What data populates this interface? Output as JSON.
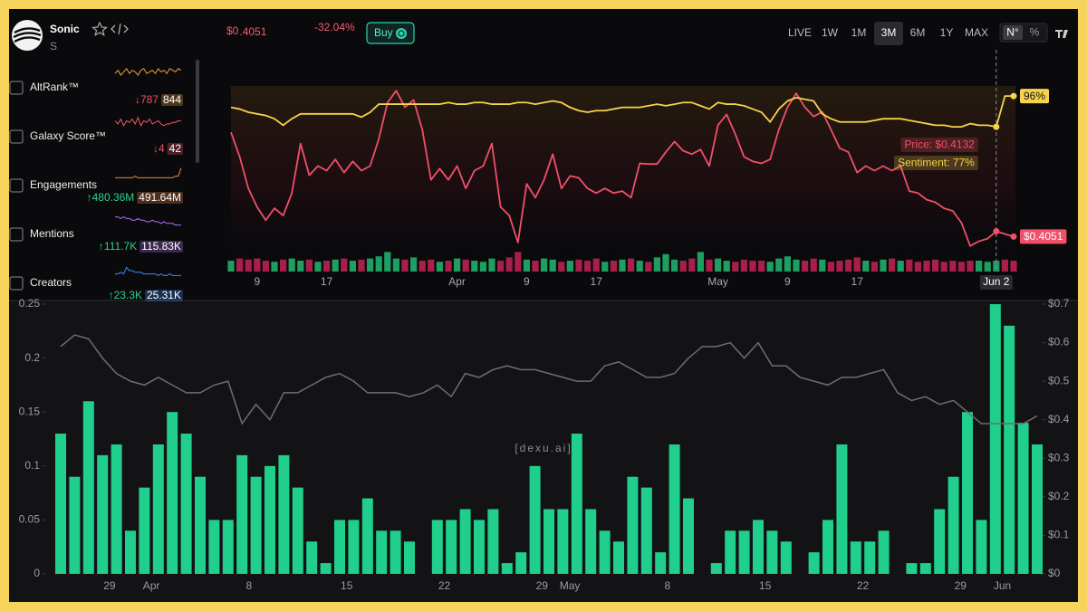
{
  "header": {
    "name": "Sonic",
    "symbol": "S",
    "price_whole": "$0",
    "price_fraction": ".4051",
    "change": "-32.04%",
    "buy": "Buy",
    "ranges": [
      "LIVE",
      "1W",
      "1M",
      "3M",
      "6M",
      "1Y",
      "MAX"
    ],
    "selected_range": "3M",
    "units": [
      "N°",
      "%"
    ],
    "selected_unit": "N°"
  },
  "metrics": [
    {
      "name": "AltRank™",
      "change": "↓787",
      "value": "844",
      "color": "#f0a53a",
      "change_color": "#f0506a",
      "spark": [
        6,
        8,
        5,
        7,
        9,
        6,
        8,
        7,
        5,
        8,
        9,
        6,
        7,
        8,
        6,
        9,
        7,
        8,
        6,
        9,
        8,
        7,
        9,
        8
      ],
      "spark_ylim": [
        0,
        10
      ]
    },
    {
      "name": "Galaxy Score™",
      "change": "↓4",
      "value": "42",
      "color": "#f0566a",
      "change_color": "#f0506a",
      "spark": [
        7,
        5,
        8,
        4,
        7,
        6,
        8,
        5,
        9,
        4,
        7,
        6,
        8,
        5,
        6,
        7,
        5,
        4,
        5,
        5,
        6,
        6,
        7,
        7
      ],
      "spark_ylim": [
        0,
        10
      ]
    },
    {
      "name": "Engagements",
      "change": "↑480.36M",
      "value": "491.64M",
      "color": "#e8884a",
      "change_color": "#2fd08a",
      "spark": [
        2,
        2,
        2,
        2,
        2,
        2,
        2,
        3,
        2,
        2,
        2,
        2,
        2,
        2,
        2,
        2,
        2,
        2,
        2,
        2,
        2,
        3,
        3,
        8
      ],
      "spark_ylim": [
        0,
        10
      ]
    },
    {
      "name": "Mentions",
      "change": "↑111.7K",
      "value": "115.83K",
      "color": "#b36cf0",
      "change_color": "#2fd08a",
      "spark": [
        8,
        8,
        7,
        8,
        7,
        7,
        6,
        6,
        7,
        6,
        6,
        5,
        5,
        6,
        5,
        5,
        4,
        5,
        4,
        4,
        4,
        3,
        3,
        3
      ],
      "spark_ylim": [
        0,
        10
      ]
    },
    {
      "name": "Creators",
      "change": "↑23.3K",
      "value": "25.31K",
      "color": "#3c8cf0",
      "change_color": "#2fd08a",
      "spark": [
        3,
        3,
        4,
        3,
        7,
        5,
        5,
        4,
        4,
        4,
        3,
        3,
        3,
        3,
        3,
        2,
        3,
        2,
        2,
        3,
        2,
        2,
        2,
        2
      ],
      "spark_ylim": [
        0,
        10
      ]
    }
  ],
  "chart_data": [
    {
      "type": "line",
      "categories": [
        null,
        null,
        null,
        "9",
        null,
        null,
        null,
        null,
        null,
        null,
        null,
        "17",
        null,
        null,
        null,
        null,
        null,
        null,
        null,
        null,
        null,
        null,
        null,
        null,
        null,
        null,
        "Apr",
        null,
        null,
        null,
        null,
        null,
        null,
        null,
        "9",
        null,
        null,
        null,
        null,
        null,
        null,
        null,
        "17",
        null,
        null,
        null,
        null,
        null,
        null,
        null,
        null,
        null,
        null,
        null,
        null,
        null,
        "May",
        null,
        null,
        null,
        null,
        null,
        null,
        null,
        "9",
        null,
        null,
        null,
        null,
        null,
        null,
        null,
        "17",
        null,
        null,
        null,
        null,
        null,
        null,
        null,
        null,
        null,
        null,
        null,
        null,
        null,
        null,
        null,
        "Jun 2",
        null,
        null
      ],
      "series": [
        {
          "color": "#f0506a",
          "values": [
            0.563,
            0.526,
            0.478,
            0.45,
            0.43,
            0.448,
            0.437,
            0.471,
            0.546,
            0.498,
            0.512,
            0.505,
            0.522,
            0.502,
            0.519,
            0.505,
            0.512,
            0.553,
            0.608,
            0.626,
            0.601,
            0.612,
            0.567,
            0.491,
            0.508,
            0.491,
            0.512,
            0.478,
            0.505,
            0.512,
            0.546,
            0.45,
            0.437,
            0.396,
            0.485,
            0.464,
            0.491,
            0.53,
            0.478,
            0.497,
            0.494,
            0.478,
            0.471,
            0.478,
            0.471,
            0.474,
            0.464,
            0.516,
            0.515,
            0.515,
            0.533,
            0.549,
            0.535,
            0.53,
            0.537,
            0.512,
            0.574,
            0.59,
            0.56,
            0.526,
            0.519,
            0.516,
            0.522,
            0.567,
            0.601,
            0.622,
            0.601,
            0.587,
            0.594,
            0.567,
            0.539,
            0.533,
            0.502,
            0.512,
            0.505,
            0.512,
            0.505,
            0.512,
            0.474,
            0.471,
            0.461,
            0.457,
            0.448,
            0.444,
            0.426,
            0.391,
            0.398,
            0.402,
            0.4132,
            0.409,
            0.4051
          ],
          "value_labels": [
            null,
            null,
            null,
            null,
            null,
            null,
            null,
            null,
            null,
            null,
            null,
            null,
            null,
            null,
            null,
            null,
            null,
            null,
            null,
            null,
            null,
            null,
            null,
            null,
            null,
            null,
            null,
            null,
            null,
            null,
            null,
            null,
            null,
            null,
            null,
            null,
            null,
            null,
            null,
            null,
            null,
            null,
            null,
            null,
            null,
            null,
            null,
            null,
            null,
            null,
            null,
            null,
            null,
            null,
            null,
            null,
            null,
            null,
            null,
            null,
            null,
            null,
            null,
            null,
            null,
            null,
            null,
            null,
            null,
            null,
            null,
            null,
            null,
            null,
            null,
            null,
            null,
            null,
            null,
            null,
            null,
            null,
            null,
            null,
            null,
            null,
            null,
            null,
            "Price: $0.4132",
            null,
            "$0.4051"
          ]
        },
        {
          "color": "#f5d34a",
          "axis": "y2",
          "values": [
            89,
            88,
            86,
            85,
            84,
            82,
            78,
            82,
            85,
            85,
            85,
            85,
            85,
            85,
            85,
            83,
            86,
            91,
            91,
            91,
            91,
            91,
            91,
            91,
            91,
            92,
            91,
            91,
            92,
            92,
            91,
            91,
            91,
            92,
            92,
            91,
            92,
            93,
            92,
            89,
            87,
            86,
            87,
            87,
            88,
            89,
            89,
            89,
            90,
            91,
            90,
            91,
            92,
            92,
            90,
            88,
            92,
            91,
            91,
            90,
            88,
            86,
            80,
            88,
            93,
            95,
            94,
            93,
            85,
            82,
            80,
            80,
            80,
            80,
            81,
            82,
            82,
            82,
            81,
            80,
            79,
            78,
            78,
            77,
            77,
            79,
            78,
            78,
            77,
            96,
            96
          ],
          "value_labels": [
            null,
            null,
            null,
            null,
            null,
            null,
            null,
            null,
            null,
            null,
            null,
            null,
            null,
            null,
            null,
            null,
            null,
            null,
            null,
            null,
            null,
            null,
            null,
            null,
            null,
            null,
            null,
            null,
            null,
            null,
            null,
            null,
            null,
            null,
            null,
            null,
            null,
            null,
            null,
            null,
            null,
            null,
            null,
            null,
            null,
            null,
            null,
            null,
            null,
            null,
            null,
            null,
            null,
            null,
            null,
            null,
            null,
            null,
            null,
            null,
            null,
            null,
            null,
            null,
            null,
            null,
            null,
            null,
            null,
            null,
            null,
            null,
            null,
            null,
            null,
            null,
            null,
            null,
            null,
            null,
            null,
            null,
            null,
            null,
            null,
            null,
            null,
            null,
            "Sentiment: 77%",
            null,
            "96%"
          ]
        }
      ],
      "ylim": [
        0.37,
        0.64
      ],
      "y2lim": [
        -5,
        105
      ],
      "volume": {
        "values": [
          10,
          12,
          11,
          12,
          10,
          9,
          11,
          12,
          10,
          11,
          9,
          10,
          11,
          12,
          10,
          11,
          12,
          14,
          18,
          12,
          11,
          13,
          10,
          11,
          9,
          10,
          12,
          11,
          10,
          9,
          12,
          10,
          13,
          18,
          11,
          10,
          12,
          11,
          9,
          10,
          11,
          10,
          12,
          9,
          10,
          11,
          12,
          10,
          9,
          13,
          16,
          11,
          10,
          12,
          18,
          11,
          12,
          10,
          9,
          11,
          10,
          10,
          9,
          12,
          14,
          11,
          10,
          12,
          11,
          9,
          10,
          11,
          13,
          10,
          9,
          11,
          12,
          10,
          11,
          9,
          10,
          11,
          9,
          10,
          9,
          10,
          10,
          9,
          10,
          11,
          10
        ],
        "ylim": [
          0,
          20
        ],
        "up_color": "#1f9e62",
        "down_color": "#a8204a"
      }
    },
    {
      "type": "bar",
      "categories": [
        null,
        null,
        null,
        null,
        "29",
        null,
        null,
        "Apr",
        null,
        null,
        null,
        null,
        null,
        null,
        "8",
        null,
        null,
        null,
        null,
        null,
        null,
        "15",
        null,
        null,
        null,
        null,
        null,
        null,
        "22",
        null,
        null,
        null,
        null,
        null,
        null,
        "29",
        null,
        "May",
        null,
        null,
        null,
        null,
        null,
        null,
        "8",
        null,
        null,
        null,
        null,
        null,
        null,
        "15",
        null,
        null,
        null,
        null,
        null,
        null,
        "22",
        null,
        null,
        null,
        null,
        null,
        null,
        "29",
        null,
        null,
        "Jun",
        null,
        null
      ],
      "series": [
        {
          "type": "bar",
          "color": "#1fcf8b",
          "values": [
            0.13,
            0.09,
            0.16,
            0.11,
            0.12,
            0.04,
            0.08,
            0.12,
            0.15,
            0.13,
            0.09,
            0.05,
            0.05,
            0.11,
            0.09,
            0.1,
            0.11,
            0.08,
            0.03,
            0.01,
            0.05,
            0.05,
            0.07,
            0.04,
            0.04,
            0.03,
            0,
            0.05,
            0.05,
            0.06,
            0.05,
            0.06,
            0.01,
            0.02,
            0.1,
            0.06,
            0.06,
            0.13,
            0.06,
            0.04,
            0.03,
            0.09,
            0.08,
            0.02,
            0.12,
            0.07,
            0,
            0.01,
            0.04,
            0.04,
            0.05,
            0.04,
            0.03,
            0,
            0.02,
            0.05,
            0.12,
            0.03,
            0.03,
            0.04,
            0,
            0.01,
            0.01,
            0.06,
            0.09,
            0.15,
            0.05,
            0.25,
            0.23,
            0.14,
            0.12
          ]
        },
        {
          "type": "line",
          "color": "#6e6e72",
          "axis": "y2",
          "values": [
            0.59,
            0.62,
            0.61,
            0.56,
            0.52,
            0.5,
            0.49,
            0.51,
            0.49,
            0.47,
            0.47,
            0.49,
            0.5,
            0.39,
            0.44,
            0.4,
            0.47,
            0.47,
            0.49,
            0.51,
            0.52,
            0.5,
            0.47,
            0.47,
            0.47,
            0.46,
            0.47,
            0.49,
            0.46,
            0.52,
            0.51,
            0.53,
            0.54,
            0.53,
            0.53,
            0.52,
            0.51,
            0.5,
            0.5,
            0.54,
            0.55,
            0.53,
            0.51,
            0.51,
            0.52,
            0.56,
            0.59,
            0.59,
            0.6,
            0.56,
            0.6,
            0.54,
            0.54,
            0.51,
            0.5,
            0.49,
            0.51,
            0.51,
            0.52,
            0.53,
            0.47,
            0.45,
            0.46,
            0.44,
            0.45,
            0.42,
            0.39,
            0.39,
            0.39,
            0.39,
            0.41
          ]
        }
      ],
      "ylim": [
        0,
        0.25
      ],
      "yticks": [
        0,
        0.05,
        0.1,
        0.15,
        0.2,
        0.25
      ],
      "y2lim": [
        0,
        0.7
      ],
      "y2ticks": [
        {
          "value": 0,
          "label": "$0"
        },
        {
          "value": 0.1,
          "label": "$0.1"
        },
        {
          "value": 0.2,
          "label": "$0.2"
        },
        {
          "value": 0.3,
          "label": "$0.3"
        },
        {
          "value": 0.4,
          "label": "$0.4"
        },
        {
          "value": 0.5,
          "label": "$0.5"
        },
        {
          "value": 0.6,
          "label": "$0.6"
        },
        {
          "value": 0.7,
          "label": "$0.7"
        }
      ],
      "watermark": "[dexu.ai]"
    }
  ]
}
